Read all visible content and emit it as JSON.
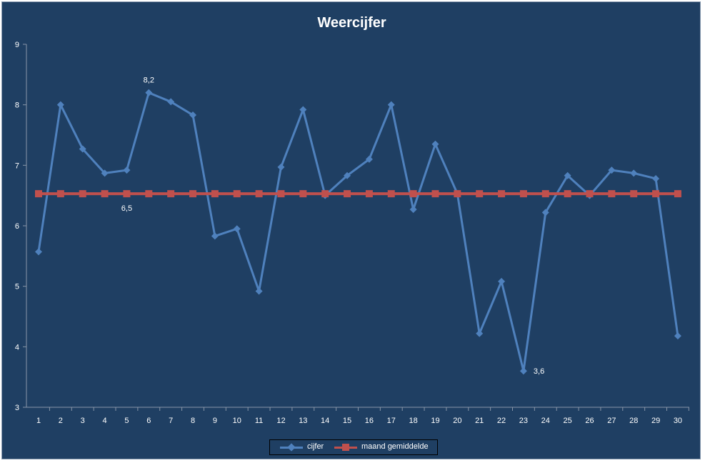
{
  "chart_data": {
    "type": "line",
    "title": "Weercijfer",
    "xlabel": "",
    "ylabel": "",
    "categories": [
      "1",
      "2",
      "3",
      "4",
      "5",
      "6",
      "7",
      "8",
      "9",
      "10",
      "11",
      "12",
      "13",
      "14",
      "15",
      "16",
      "17",
      "18",
      "19",
      "20",
      "21",
      "22",
      "23",
      "24",
      "25",
      "26",
      "27",
      "28",
      "29",
      "30"
    ],
    "ylim": [
      3,
      9
    ],
    "yticks": [
      "3",
      "4",
      "5",
      "6",
      "7",
      "8",
      "9"
    ],
    "grid": false,
    "legend_position": "bottom",
    "series": [
      {
        "name": "cijfer",
        "color": "#4f81bd",
        "marker": "diamond",
        "values": [
          5.57,
          8.0,
          7.27,
          6.87,
          6.92,
          8.2,
          8.05,
          7.83,
          5.83,
          5.95,
          4.92,
          6.97,
          7.92,
          6.5,
          6.83,
          7.1,
          8.0,
          6.27,
          7.35,
          6.53,
          4.22,
          5.08,
          3.6,
          6.22,
          6.83,
          6.5,
          6.92,
          6.87,
          6.78,
          4.18
        ]
      },
      {
        "name": "maand gemiddelde",
        "color": "#c0504d",
        "marker": "square",
        "values": [
          6.53,
          6.53,
          6.53,
          6.53,
          6.53,
          6.53,
          6.53,
          6.53,
          6.53,
          6.53,
          6.53,
          6.53,
          6.53,
          6.53,
          6.53,
          6.53,
          6.53,
          6.53,
          6.53,
          6.53,
          6.53,
          6.53,
          6.53,
          6.53,
          6.53,
          6.53,
          6.53,
          6.53,
          6.53,
          6.53
        ]
      }
    ],
    "annotations": [
      {
        "text": "8,2",
        "series": 0,
        "index": 5
      },
      {
        "text": "6,5",
        "series": 1,
        "index": 4
      },
      {
        "text": "3,6",
        "series": 0,
        "index": 22
      }
    ]
  }
}
